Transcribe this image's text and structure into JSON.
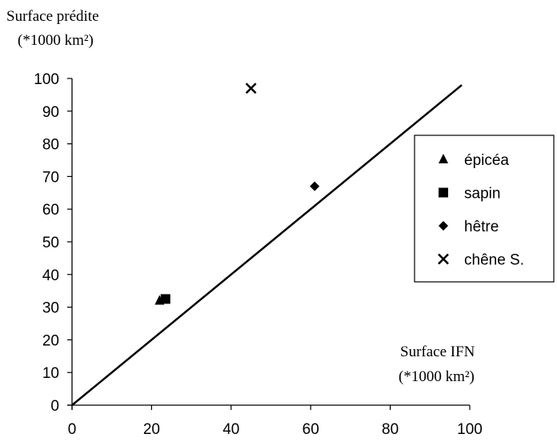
{
  "chart_data": {
    "type": "scatter",
    "ylabel_line1": "Surface prédite",
    "ylabel_line2": "(*1000 km²)",
    "xlabel_line1": "Surface IFN",
    "xlabel_line2": "(*1000 km²)",
    "xlim": [
      0,
      100
    ],
    "ylim": [
      0,
      100
    ],
    "x_ticks": [
      "0",
      "20",
      "40",
      "60",
      "80",
      "100"
    ],
    "y_ticks": [
      "0",
      "10",
      "20",
      "30",
      "40",
      "50",
      "60",
      "70",
      "80",
      "90",
      "100"
    ],
    "grid": false,
    "legend_position": "right",
    "series": [
      {
        "name": "épicéa",
        "marker": "triangle",
        "points": [
          {
            "x": 22,
            "y": 32
          }
        ]
      },
      {
        "name": "sapin",
        "marker": "square",
        "points": [
          {
            "x": 23.5,
            "y": 32.5
          }
        ]
      },
      {
        "name": "hêtre",
        "marker": "diamond",
        "points": [
          {
            "x": 61,
            "y": 67
          }
        ]
      },
      {
        "name": "chêne S.",
        "marker": "cross",
        "points": [
          {
            "x": 45,
            "y": 97
          }
        ]
      }
    ],
    "reference_line": {
      "x": [
        0,
        98
      ],
      "y": [
        0,
        98
      ]
    },
    "colors": {
      "marker": "#000000",
      "axis": "#000000"
    }
  }
}
